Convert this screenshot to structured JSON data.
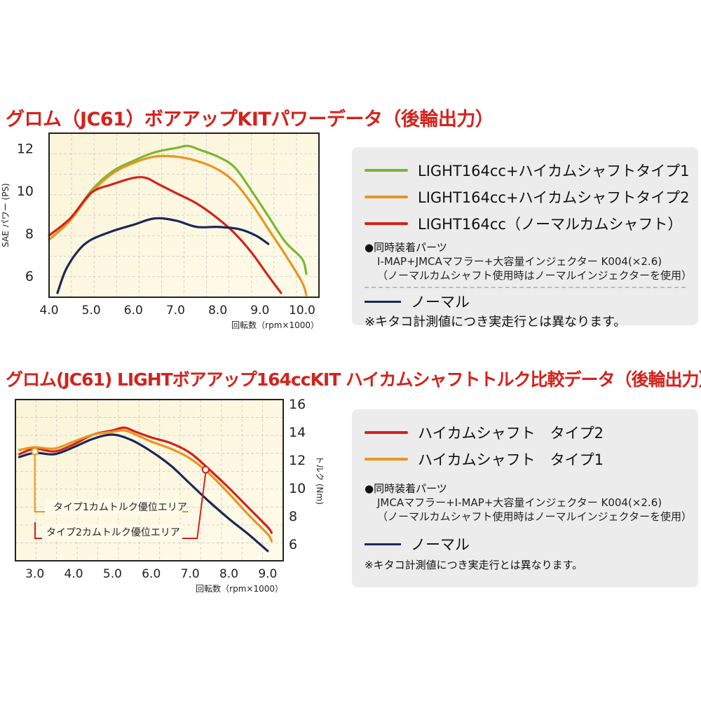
{
  "colors": {
    "green": "#7bb630",
    "orange": "#e8961f",
    "red": "#d3231c",
    "navy": "#1b2857"
  },
  "title1": "グロム（JC61）ボアアップKITパワーデータ（後輪出力）",
  "title2": "グロム(JC61) LIGHTボアアップ164ccKIT ハイカムシャフトトルク比較データ（後輪出力）",
  "legend1": {
    "items": [
      {
        "label": "LIGHT164cc+ハイカムシャフトタイプ1",
        "color": "#7bb630"
      },
      {
        "label": "LIGHT164cc+ハイカムシャフトタイプ2",
        "color": "#e8961f"
      },
      {
        "label": "LIGHT164cc（ノーマルカムシャフト）",
        "color": "#d3231c"
      }
    ],
    "parts_heading": "●同時装着パーツ",
    "parts_lines": [
      "I-MAP+JMCAマフラー+大容量インジェクター K004(×2.6)",
      "（ノーマルカムシャフト使用時はノーマルインジェクターを使用）"
    ],
    "normal_label": "ノーマル",
    "note": "※キタコ計測値につき実走行とは異なります。"
  },
  "legend2": {
    "items": [
      {
        "label": "ハイカムシャフト　タイプ2",
        "color": "#d3231c"
      },
      {
        "label": "ハイカムシャフト　タイプ1",
        "color": "#e8961f"
      }
    ],
    "parts_heading": "●同時装着パーツ",
    "parts_lines": [
      "JMCAマフラー+I-MAP+大容量インジェクター K004(×2.6)",
      "（ノーマルカムシャフト使用時はノーマルインジェクターを使用）"
    ],
    "normal_label": "ノーマル",
    "note": "※キタコ計測値につき実走行とは異なります。"
  },
  "chart_data": [
    {
      "type": "line",
      "title": "グロム（JC61）ボアアップKITパワーデータ（後輪出力）",
      "xlabel": "回転数（rpm×1000）",
      "ylabel": "SAE パワー (PS)",
      "x_ticks": [
        "4.0",
        "5.0",
        "6.0",
        "7.0",
        "8.0",
        "9.0",
        "10.0"
      ],
      "y_ticks": [
        "6",
        "8",
        "10",
        "12"
      ],
      "xlim": [
        4.0,
        10.4
      ],
      "ylim": [
        5.0,
        12.7
      ],
      "grid": true,
      "series": [
        {
          "name": "LIGHT164cc+ハイカムシャフトタイプ1",
          "color": "#7bb630",
          "x": [
            4.0,
            4.5,
            5.0,
            5.5,
            6.0,
            6.5,
            7.0,
            7.3,
            7.6,
            8.0,
            8.4,
            8.8,
            9.2,
            9.6,
            10.0,
            10.1
          ],
          "y": [
            7.7,
            8.6,
            10.0,
            10.9,
            11.4,
            11.8,
            12.0,
            12.1,
            11.9,
            11.6,
            11.1,
            10.0,
            8.8,
            7.6,
            6.8,
            6.1
          ]
        },
        {
          "name": "LIGHT164cc+ハイカムシャフトタイプ2",
          "color": "#e8961f",
          "x": [
            4.0,
            4.5,
            5.0,
            5.5,
            6.0,
            6.5,
            7.0,
            7.5,
            8.0,
            8.4,
            8.8,
            9.2,
            9.6,
            10.0,
            10.1
          ],
          "y": [
            7.7,
            8.6,
            9.9,
            10.8,
            11.3,
            11.6,
            11.6,
            11.4,
            11.0,
            10.4,
            9.4,
            8.2,
            7.0,
            5.7,
            5.1
          ]
        },
        {
          "name": "LIGHT164cc（ノーマルカムシャフト）",
          "color": "#d3231c",
          "x": [
            4.0,
            4.5,
            5.0,
            5.5,
            6.0,
            6.3,
            6.6,
            7.0,
            7.5,
            8.0,
            8.4,
            8.8,
            9.2,
            9.5
          ],
          "y": [
            7.9,
            8.7,
            9.9,
            10.3,
            10.6,
            10.6,
            10.3,
            9.9,
            9.4,
            8.7,
            8.0,
            7.1,
            6.0,
            5.2
          ]
        },
        {
          "name": "ノーマル",
          "color": "#1b2857",
          "x": [
            4.2,
            4.4,
            4.7,
            5.0,
            5.5,
            6.0,
            6.5,
            7.0,
            7.5,
            8.0,
            8.5,
            8.9,
            9.2
          ],
          "y": [
            5.2,
            6.3,
            7.2,
            7.7,
            8.1,
            8.4,
            8.7,
            8.6,
            8.3,
            8.3,
            8.2,
            7.9,
            7.5
          ]
        }
      ]
    },
    {
      "type": "line",
      "title": "グロム(JC61) LIGHTボアアップ164ccKIT ハイカムシャフトトルク比較データ（後輪出力）",
      "xlabel": "回転数（rpm×1000）",
      "ylabel": "トルク (Nm)",
      "x_ticks": [
        "3.0",
        "4.0",
        "5.0",
        "6.0",
        "7.0",
        "8.0",
        "9.0"
      ],
      "y_ticks": [
        "6",
        "8",
        "10",
        "12",
        "14",
        "16"
      ],
      "xlim": [
        2.5,
        9.4
      ],
      "ylim": [
        4.8,
        16.3
      ],
      "grid": true,
      "annotations": [
        {
          "text": "タイプ1カムトルク優位エリア",
          "x": 3.0,
          "y": 12.6,
          "color": "#e8961f"
        },
        {
          "text": "タイプ2カムトルク優位エリア",
          "x": 7.4,
          "y": 11.3,
          "color": "#d3231c"
        }
      ],
      "series": [
        {
          "name": "ハイカムシャフト　タイプ2",
          "color": "#d3231c",
          "x": [
            2.6,
            3.0,
            3.5,
            4.0,
            4.5,
            5.0,
            5.3,
            5.6,
            6.0,
            6.5,
            7.0,
            7.5,
            8.0,
            8.5,
            9.0,
            9.1
          ],
          "y": [
            12.4,
            12.8,
            12.6,
            13.1,
            13.8,
            14.1,
            14.3,
            14.0,
            13.6,
            13.2,
            12.5,
            11.3,
            10.0,
            8.6,
            7.2,
            6.8
          ]
        },
        {
          "name": "ハイカムシャフト　タイプ1",
          "color": "#e8961f",
          "x": [
            2.6,
            3.0,
            3.5,
            4.0,
            4.5,
            5.0,
            5.3,
            5.6,
            6.0,
            6.5,
            7.0,
            7.5,
            8.0,
            8.5,
            9.0,
            9.1
          ],
          "y": [
            12.7,
            12.9,
            12.8,
            13.3,
            13.8,
            14.0,
            14.1,
            13.8,
            13.3,
            12.8,
            12.1,
            11.0,
            9.6,
            8.1,
            6.7,
            6.2
          ]
        },
        {
          "name": "ノーマル",
          "color": "#1b2857",
          "x": [
            2.6,
            3.0,
            3.5,
            4.0,
            4.5,
            5.0,
            5.5,
            6.0,
            6.5,
            7.0,
            7.5,
            8.0,
            8.5,
            9.0
          ],
          "y": [
            12.2,
            12.5,
            12.4,
            12.9,
            13.5,
            13.8,
            13.4,
            12.6,
            11.6,
            10.3,
            9.0,
            7.8,
            6.7,
            5.5
          ]
        }
      ]
    }
  ]
}
